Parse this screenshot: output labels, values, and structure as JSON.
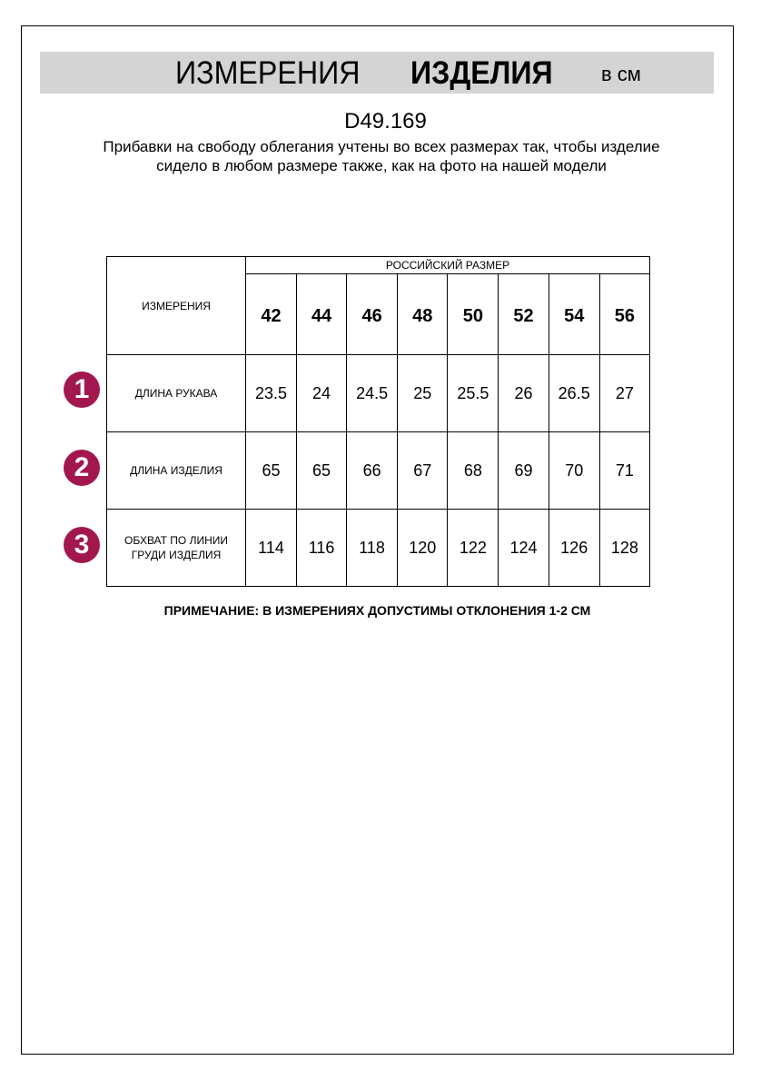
{
  "header": {
    "title_regular": "ИЗМЕРЕНИЯ",
    "title_bold": "ИЗДЕЛИЯ",
    "unit": "в см"
  },
  "product_code": "D49.169",
  "description": "Прибавки на свободу облегания учтены во всех размерах так, чтобы изделие сидело в любом размере также, как на фото на нашей модели",
  "table": {
    "measure_header": "ИЗМЕРЕНИЯ",
    "size_header": "РОССИЙСКИЙ РАЗМЕР",
    "sizes": [
      "42",
      "44",
      "46",
      "48",
      "50",
      "52",
      "54",
      "56"
    ],
    "rows": [
      {
        "num": "1",
        "label": "ДЛИНА РУКАВА",
        "values": [
          "23.5",
          "24",
          "24.5",
          "25",
          "25.5",
          "26",
          "26.5",
          "27"
        ]
      },
      {
        "num": "2",
        "label": "ДЛИНА ИЗДЕЛИЯ",
        "values": [
          "65",
          "65",
          "66",
          "67",
          "68",
          "69",
          "70",
          "71"
        ]
      },
      {
        "num": "3",
        "label": "ОБХВАТ ПО ЛИНИИ ГРУДИ ИЗДЕЛИЯ",
        "values": [
          "114",
          "116",
          "118",
          "120",
          "122",
          "124",
          "126",
          "128"
        ]
      }
    ]
  },
  "note": "ПРИМЕЧАНИЕ: В ИЗМЕРЕНИЯХ ДОПУСТИМЫ ОТКЛОНЕНИЯ 1-2 СМ",
  "colors": {
    "badge": "#a3174f",
    "band": "#d4d4d4"
  }
}
